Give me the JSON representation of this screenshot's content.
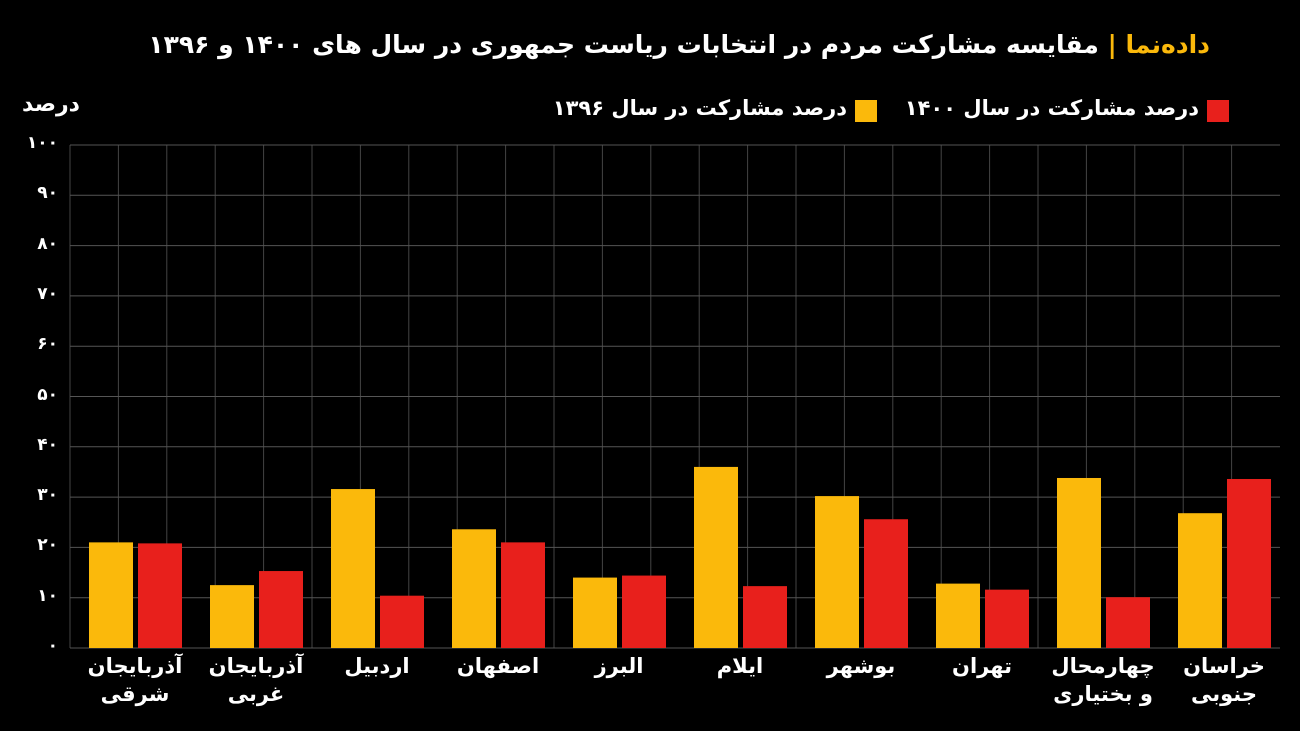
{
  "chart_data": {
    "type": "bar",
    "brand": "داده‌نما",
    "separator": "|",
    "title": "مقایسه مشارکت مردم در انتخابات ریاست جمهوری در سال های ۱۴۰۰ و ۱۳۹۶",
    "y_label": "درصد",
    "categories": [
      "آذربایجان\nشرقی",
      "آذربایجان\nغربی",
      "اردبیل",
      "اصفهان",
      "البرز",
      "ایلام",
      "بوشهر",
      "تهران",
      "چهارمحال\nو بختیاری",
      "خراسان\nجنوبی"
    ],
    "series": [
      {
        "name": "درصد مشارکت در سال ۱۳۹۶",
        "color": "#fbb90b",
        "values": [
          21,
          12.5,
          31.6,
          23.6,
          14,
          36,
          30.2,
          12.8,
          33.8,
          26.8
        ]
      },
      {
        "name": "درصد مشارکت در سال ۱۴۰۰",
        "color": "#e8201c",
        "values": [
          20.8,
          15.3,
          10.4,
          21,
          14.4,
          12.3,
          25.6,
          11.6,
          10.1,
          33.6
        ]
      }
    ],
    "ylim": [
      0,
      100
    ],
    "yticks": [
      {
        "value": 0,
        "label": "۰"
      },
      {
        "value": 10,
        "label": "۱۰"
      },
      {
        "value": 20,
        "label": "۲۰"
      },
      {
        "value": 30,
        "label": "۳۰"
      },
      {
        "value": 40,
        "label": "۴۰"
      },
      {
        "value": 50,
        "label": "۵۰"
      },
      {
        "value": 60,
        "label": "۶۰"
      },
      {
        "value": 70,
        "label": "۷۰"
      },
      {
        "value": 80,
        "label": "۸۰"
      },
      {
        "value": 90,
        "label": "۹۰"
      },
      {
        "value": 100,
        "label": "۱۰۰"
      }
    ],
    "grid": true
  }
}
